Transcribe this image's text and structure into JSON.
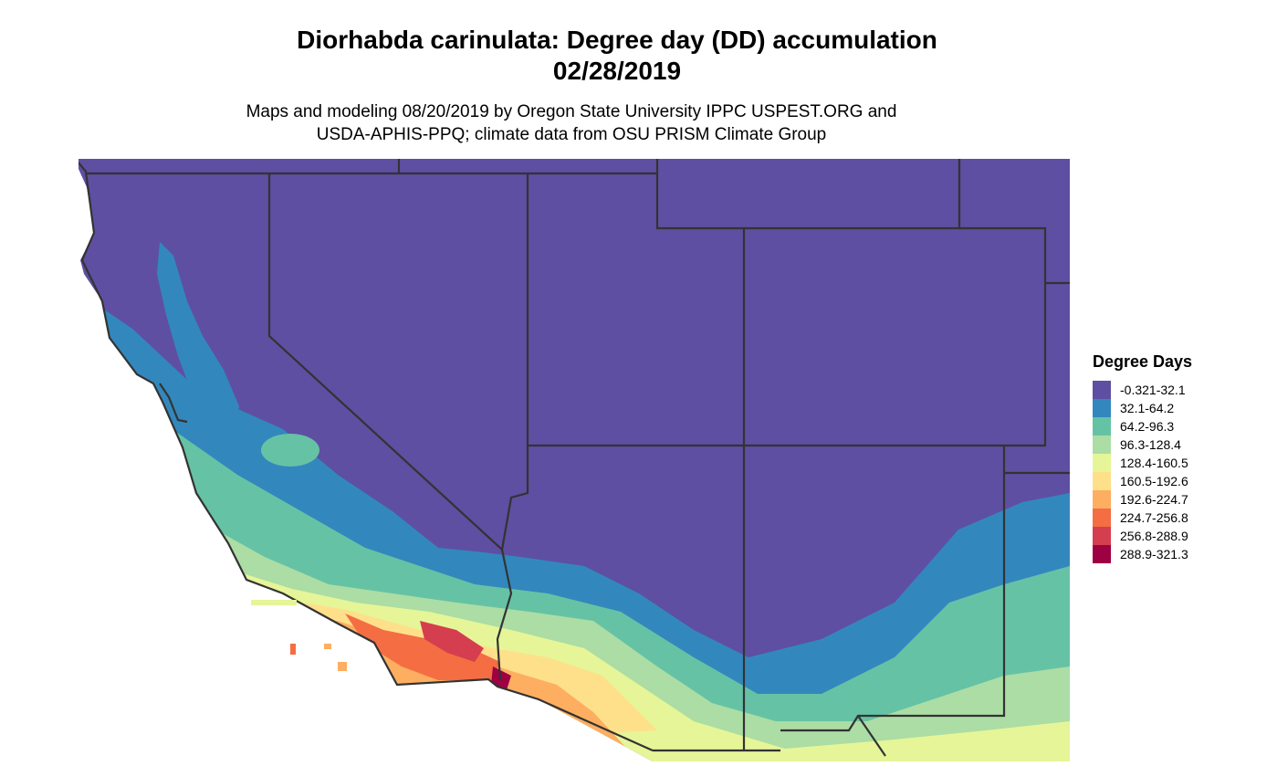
{
  "title": {
    "line1": "Diorhabda carinulata: Degree day (DD) accumulation",
    "line2": "02/28/2019"
  },
  "subtitle": {
    "line1": "Maps and modeling 08/20/2019 by Oregon State University IPPC USPEST.ORG and",
    "line2": "USDA-APHIS-PPQ; climate data from OSU PRISM Climate Group"
  },
  "legend": {
    "title": "Degree Days",
    "items": [
      {
        "label": "-0.321-32.1",
        "color": "#5e4fa2"
      },
      {
        "label": "32.1-64.2",
        "color": "#3288bd"
      },
      {
        "label": "64.2-96.3",
        "color": "#66c2a5"
      },
      {
        "label": "96.3-128.4",
        "color": "#abdda4"
      },
      {
        "label": "128.4-160.5",
        "color": "#e6f598"
      },
      {
        "label": "160.5-192.6",
        "color": "#fee08b"
      },
      {
        "label": "192.6-224.7",
        "color": "#fdae61"
      },
      {
        "label": "224.7-256.8",
        "color": "#f46d43"
      },
      {
        "label": "256.8-288.9",
        "color": "#d53e4f"
      },
      {
        "label": "288.9-321.3",
        "color": "#9e0142"
      }
    ]
  },
  "map": {
    "region": "Southwestern United States",
    "states": [
      "California",
      "Nevada",
      "Utah",
      "Arizona",
      "New Mexico",
      "Colorado"
    ],
    "boundary_color": "#333333"
  }
}
